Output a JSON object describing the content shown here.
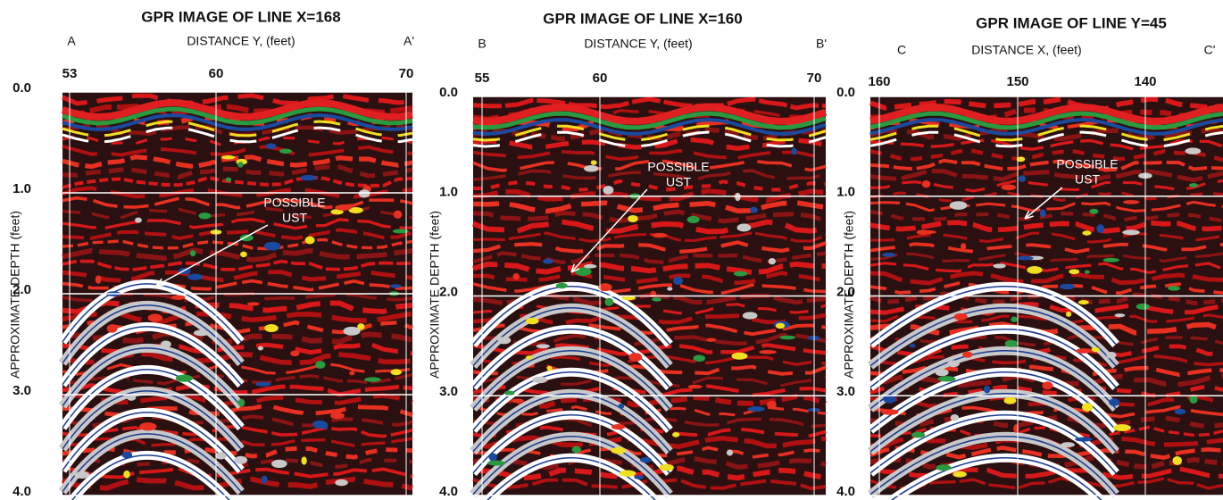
{
  "panels": [
    {
      "title": "GPR IMAGE OF LINE X=168",
      "start": "A",
      "end": "A'",
      "axis_label": "DISTANCE Y, (feet)",
      "top_ticks": [
        "53",
        "60",
        "70"
      ],
      "depth_label": "APPROXIMATE DEPTH (feet)",
      "depth_ticks": [
        "0.0",
        "1.0",
        "2.0",
        "3.0",
        "4.0"
      ],
      "annotation": [
        "POSSIBLE",
        "UST"
      ]
    },
    {
      "title": "GPR IMAGE OF LINE X=160",
      "start": "B",
      "end": "B'",
      "axis_label": "DISTANCE Y, (feet)",
      "top_ticks": [
        "55",
        "60",
        "70"
      ],
      "depth_label": "APPROXIMATE DEPTH (feet)",
      "depth_ticks": [
        "0.0",
        "1.0",
        "2.0",
        "3.0",
        "4.0"
      ],
      "annotation": [
        "POSSIBLE",
        "UST"
      ]
    },
    {
      "title": "GPR IMAGE OF LINE Y=45",
      "start": "C",
      "end": "C'",
      "axis_label": "DISTANCE X, (feet)",
      "top_ticks": [
        "160",
        "150",
        "140"
      ],
      "depth_label": "APPROXIMATE DEPTH (feet)",
      "depth_ticks": [
        "0.0",
        "1.0",
        "2.0",
        "3.0",
        "4.0"
      ],
      "annotation": [
        "POSSIBLE",
        "UST"
      ]
    }
  ]
}
